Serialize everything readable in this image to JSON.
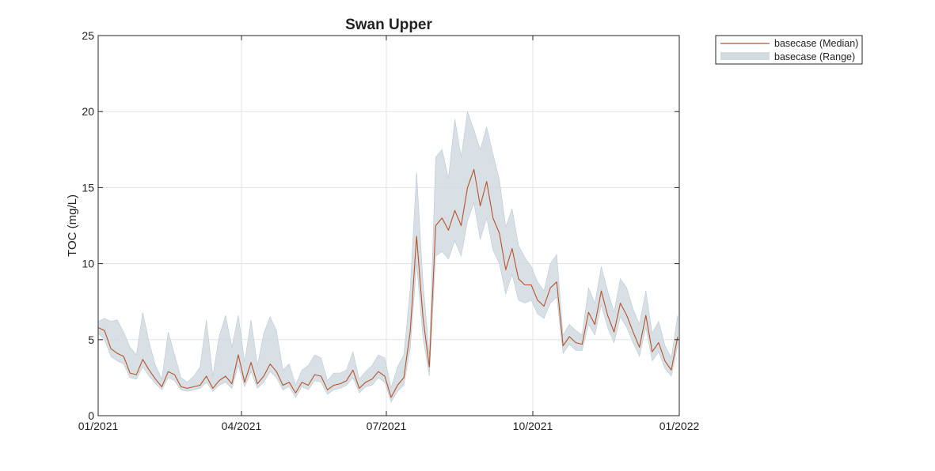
{
  "chart_data": {
    "type": "line",
    "title": "Swan Upper",
    "xlabel": "",
    "ylabel": "TOC (mg/L)",
    "xlim": [
      "2021-01-01",
      "2022-01-01"
    ],
    "ylim": [
      0,
      25
    ],
    "grid": true,
    "legend_position": "outside-top-right",
    "x_ticks": [
      {
        "date": "2021-01-01",
        "label": "01/2021"
      },
      {
        "date": "2021-04-01",
        "label": "04/2021"
      },
      {
        "date": "2021-07-01",
        "label": "07/2021"
      },
      {
        "date": "2021-10-01",
        "label": "10/2021"
      },
      {
        "date": "2022-01-01",
        "label": "01/2022"
      }
    ],
    "y_ticks": [
      0,
      5,
      10,
      15,
      20,
      25
    ],
    "colors": {
      "median": "#b5532b",
      "range": "#d1dbe0"
    },
    "series": [
      {
        "name": "basecase (Median)",
        "kind": "line",
        "x": [
          "2021-01-01",
          "2021-01-05",
          "2021-01-09",
          "2021-01-13",
          "2021-01-17",
          "2021-01-21",
          "2021-01-25",
          "2021-01-29",
          "2021-02-02",
          "2021-02-06",
          "2021-02-10",
          "2021-02-14",
          "2021-02-18",
          "2021-02-22",
          "2021-02-26",
          "2021-03-02",
          "2021-03-06",
          "2021-03-10",
          "2021-03-14",
          "2021-03-18",
          "2021-03-22",
          "2021-03-26",
          "2021-03-30",
          "2021-04-03",
          "2021-04-07",
          "2021-04-11",
          "2021-04-15",
          "2021-04-19",
          "2021-04-23",
          "2021-04-27",
          "2021-05-01",
          "2021-05-05",
          "2021-05-09",
          "2021-05-13",
          "2021-05-17",
          "2021-05-21",
          "2021-05-25",
          "2021-05-29",
          "2021-06-02",
          "2021-06-06",
          "2021-06-10",
          "2021-06-14",
          "2021-06-18",
          "2021-06-22",
          "2021-06-26",
          "2021-06-30",
          "2021-07-04",
          "2021-07-08",
          "2021-07-12",
          "2021-07-16",
          "2021-07-20",
          "2021-07-24",
          "2021-07-28",
          "2021-08-01",
          "2021-08-05",
          "2021-08-09",
          "2021-08-13",
          "2021-08-17",
          "2021-08-21",
          "2021-08-25",
          "2021-08-29",
          "2021-09-02",
          "2021-09-06",
          "2021-09-10",
          "2021-09-14",
          "2021-09-18",
          "2021-09-22",
          "2021-09-26",
          "2021-09-30",
          "2021-10-04",
          "2021-10-08",
          "2021-10-12",
          "2021-10-16",
          "2021-10-20",
          "2021-10-24",
          "2021-10-28",
          "2021-11-01",
          "2021-11-05",
          "2021-11-09",
          "2021-11-13",
          "2021-11-17",
          "2021-11-21",
          "2021-11-25",
          "2021-11-29",
          "2021-12-03",
          "2021-12-07",
          "2021-12-11",
          "2021-12-15",
          "2021-12-19",
          "2021-12-23",
          "2021-12-27",
          "2021-12-31"
        ],
        "y": [
          5.8,
          5.6,
          4.4,
          4.1,
          3.9,
          2.8,
          2.7,
          3.7,
          3.0,
          2.4,
          1.9,
          2.9,
          2.7,
          1.9,
          1.8,
          1.9,
          2.0,
          2.6,
          1.8,
          2.3,
          2.6,
          2.1,
          4.0,
          2.2,
          3.5,
          2.1,
          2.6,
          3.4,
          2.9,
          2.0,
          2.2,
          1.5,
          2.2,
          2.0,
          2.7,
          2.6,
          1.7,
          2.0,
          2.1,
          2.3,
          3.0,
          1.8,
          2.2,
          2.4,
          2.9,
          2.6,
          1.2,
          2.0,
          2.5,
          5.5,
          11.8,
          6.5,
          3.2,
          12.5,
          13.0,
          12.2,
          13.5,
          12.5,
          15.0,
          16.2,
          13.8,
          15.4,
          13.0,
          12.0,
          9.6,
          11.0,
          9.0,
          8.6,
          8.6,
          7.6,
          7.2,
          8.4,
          8.8,
          4.6,
          5.2,
          4.8,
          4.7,
          6.8,
          6.0,
          8.2,
          6.6,
          5.5,
          7.4,
          6.6,
          5.5,
          4.5,
          6.6,
          4.2,
          4.8,
          3.6,
          3.0,
          5.2
        ]
      },
      {
        "name": "basecase (Range)",
        "kind": "band",
        "x": [
          "2021-01-01",
          "2021-01-05",
          "2021-01-09",
          "2021-01-13",
          "2021-01-17",
          "2021-01-21",
          "2021-01-25",
          "2021-01-29",
          "2021-02-02",
          "2021-02-06",
          "2021-02-10",
          "2021-02-14",
          "2021-02-18",
          "2021-02-22",
          "2021-02-26",
          "2021-03-02",
          "2021-03-06",
          "2021-03-10",
          "2021-03-14",
          "2021-03-18",
          "2021-03-22",
          "2021-03-26",
          "2021-03-30",
          "2021-04-03",
          "2021-04-07",
          "2021-04-11",
          "2021-04-15",
          "2021-04-19",
          "2021-04-23",
          "2021-04-27",
          "2021-05-01",
          "2021-05-05",
          "2021-05-09",
          "2021-05-13",
          "2021-05-17",
          "2021-05-21",
          "2021-05-25",
          "2021-05-29",
          "2021-06-02",
          "2021-06-06",
          "2021-06-10",
          "2021-06-14",
          "2021-06-18",
          "2021-06-22",
          "2021-06-26",
          "2021-06-30",
          "2021-07-04",
          "2021-07-08",
          "2021-07-12",
          "2021-07-16",
          "2021-07-20",
          "2021-07-24",
          "2021-07-28",
          "2021-08-01",
          "2021-08-05",
          "2021-08-09",
          "2021-08-13",
          "2021-08-17",
          "2021-08-21",
          "2021-08-25",
          "2021-08-29",
          "2021-09-02",
          "2021-09-06",
          "2021-09-10",
          "2021-09-14",
          "2021-09-18",
          "2021-09-22",
          "2021-09-26",
          "2021-09-30",
          "2021-10-04",
          "2021-10-08",
          "2021-10-12",
          "2021-10-16",
          "2021-10-20",
          "2021-10-24",
          "2021-10-28",
          "2021-11-01",
          "2021-11-05",
          "2021-11-09",
          "2021-11-13",
          "2021-11-17",
          "2021-11-21",
          "2021-11-25",
          "2021-11-29",
          "2021-12-03",
          "2021-12-07",
          "2021-12-11",
          "2021-12-15",
          "2021-12-19",
          "2021-12-23",
          "2021-12-27",
          "2021-12-31"
        ],
        "y_low": [
          5.4,
          5.0,
          3.9,
          3.6,
          3.4,
          2.5,
          2.4,
          3.2,
          2.6,
          2.1,
          1.7,
          2.5,
          2.3,
          1.7,
          1.6,
          1.7,
          1.8,
          2.2,
          1.6,
          2.0,
          2.2,
          1.8,
          3.3,
          1.9,
          2.9,
          1.8,
          2.2,
          2.9,
          2.5,
          1.7,
          1.9,
          1.2,
          1.9,
          1.7,
          2.3,
          2.2,
          1.4,
          1.7,
          1.8,
          2.0,
          2.5,
          1.5,
          1.9,
          2.0,
          2.5,
          2.2,
          0.9,
          1.6,
          2.0,
          4.4,
          10.0,
          5.2,
          2.6,
          10.5,
          10.8,
          10.3,
          11.5,
          10.5,
          12.8,
          14.0,
          11.6,
          13.0,
          10.9,
          10.0,
          8.0,
          9.3,
          7.6,
          7.4,
          7.6,
          6.7,
          6.4,
          7.4,
          7.8,
          4.1,
          4.7,
          4.3,
          4.3,
          6.0,
          5.3,
          7.3,
          5.8,
          4.8,
          6.5,
          5.8,
          4.8,
          3.9,
          5.8,
          3.6,
          4.2,
          3.1,
          2.6,
          4.6
        ],
        "y_high": [
          6.2,
          6.4,
          6.2,
          6.3,
          5.5,
          4.5,
          4.0,
          6.8,
          4.8,
          3.3,
          2.4,
          5.5,
          4.0,
          2.5,
          2.2,
          2.6,
          3.2,
          6.3,
          2.6,
          5.2,
          6.6,
          4.5,
          6.6,
          3.5,
          6.3,
          3.3,
          5.4,
          6.5,
          5.6,
          3.0,
          3.4,
          2.0,
          3.0,
          3.3,
          4.0,
          3.8,
          2.3,
          2.8,
          2.8,
          3.0,
          4.2,
          2.4,
          2.9,
          3.3,
          4.0,
          3.8,
          1.8,
          3.2,
          4.0,
          8.3,
          16.0,
          8.8,
          4.0,
          17.0,
          17.5,
          15.6,
          19.5,
          17.0,
          20.0,
          18.8,
          17.5,
          19.0,
          17.2,
          15.5,
          12.4,
          13.6,
          11.2,
          10.4,
          9.8,
          8.8,
          8.2,
          10.0,
          10.6,
          5.3,
          6.0,
          5.6,
          5.3,
          8.4,
          7.4,
          9.8,
          8.2,
          6.8,
          9.0,
          8.4,
          7.0,
          6.0,
          8.2,
          5.4,
          6.2,
          4.6,
          3.8,
          6.6
        ]
      }
    ]
  }
}
